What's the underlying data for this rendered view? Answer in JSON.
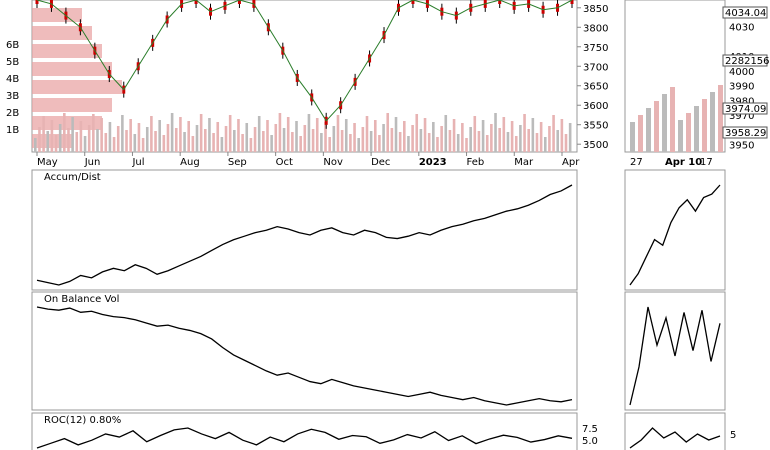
{
  "chart_data": [
    {
      "type": "candlestick",
      "panel": "price-main",
      "x_ticks": [
        "May",
        "Jun",
        "Jul",
        "Aug",
        "Sep",
        "Oct",
        "Nov",
        "Dec",
        "2023",
        "Feb",
        "Mar",
        "Apr"
      ],
      "y_ticks": [
        3850,
        3800,
        3750,
        3700,
        3650,
        3600,
        3550,
        3500
      ],
      "ylim": [
        3480,
        3870
      ],
      "volume_profile_labels": [
        "6B",
        "5B",
        "4B",
        "3B",
        "2B",
        "1B"
      ],
      "close_path": [
        3870,
        3860,
        3830,
        3800,
        3740,
        3680,
        3640,
        3700,
        3760,
        3820,
        3860,
        3870,
        3840,
        3855,
        3870,
        3860,
        3800,
        3740,
        3670,
        3620,
        3560,
        3600,
        3660,
        3720,
        3780,
        3850,
        3870,
        3860,
        3840,
        3830,
        3850,
        3860,
        3870,
        3855,
        3860,
        3845,
        3850,
        3870
      ]
    },
    {
      "type": "candlestick",
      "panel": "price-zoom",
      "x_ticks": [
        "27",
        "Apr 10",
        "17"
      ],
      "y_ticks": [
        4040,
        4030,
        4010,
        4000,
        3990,
        3980,
        3970,
        3960,
        3950
      ],
      "ylim": [
        3945,
        4048
      ],
      "value_labels": [
        "4034.04",
        "2282156",
        "3974.09",
        "3958.29"
      ]
    },
    {
      "type": "line",
      "panel": "accum-dist",
      "name": "Accum/Dist",
      "values": [
        20,
        18,
        16,
        19,
        24,
        22,
        27,
        30,
        28,
        33,
        30,
        25,
        28,
        32,
        36,
        40,
        45,
        50,
        54,
        57,
        60,
        62,
        65,
        63,
        60,
        58,
        62,
        64,
        60,
        58,
        62,
        60,
        56,
        55,
        57,
        60,
        58,
        62,
        65,
        67,
        70,
        72,
        75,
        78,
        80,
        83,
        87,
        92,
        95,
        100
      ],
      "zoom_values": [
        20,
        30,
        45,
        60,
        55,
        75,
        88,
        95,
        85,
        97,
        100,
        108
      ]
    },
    {
      "type": "line",
      "panel": "obv",
      "name": "On Balance Vol",
      "values": [
        100,
        98,
        97,
        99,
        95,
        96,
        93,
        91,
        90,
        88,
        85,
        82,
        83,
        80,
        78,
        75,
        70,
        62,
        55,
        50,
        45,
        40,
        36,
        38,
        34,
        30,
        28,
        32,
        29,
        26,
        24,
        22,
        20,
        18,
        16,
        18,
        20,
        17,
        15,
        13,
        15,
        12,
        10,
        8,
        10,
        12,
        14,
        12,
        11,
        13
      ],
      "zoom_values": [
        5,
        40,
        95,
        60,
        85,
        50,
        90,
        55,
        92,
        45,
        80
      ]
    },
    {
      "type": "line",
      "panel": "roc",
      "name": "ROC(12) 0.80%",
      "y_ticks": [
        "7.5",
        "5.0"
      ],
      "zoom_y_ticks": [
        "5"
      ],
      "values": [
        1.0,
        2.5,
        4.0,
        2.0,
        3.5,
        5.5,
        4.5,
        6.5,
        3.0,
        5.0,
        6.8,
        7.4,
        5.5,
        4.0,
        6.0,
        3.5,
        2.0,
        4.5,
        3.0,
        5.5,
        7.0,
        6.0,
        3.8,
        5.0,
        4.6,
        2.5,
        3.6,
        5.3,
        4.2,
        6.2,
        3.4,
        4.9,
        2.4,
        3.9,
        5.1,
        4.4,
        2.9,
        3.7,
        4.9,
        4.1
      ],
      "zoom_values": [
        1.0,
        3.0,
        6.0,
        3.5,
        5.0,
        2.5,
        4.5,
        3.0,
        4.0
      ]
    }
  ]
}
